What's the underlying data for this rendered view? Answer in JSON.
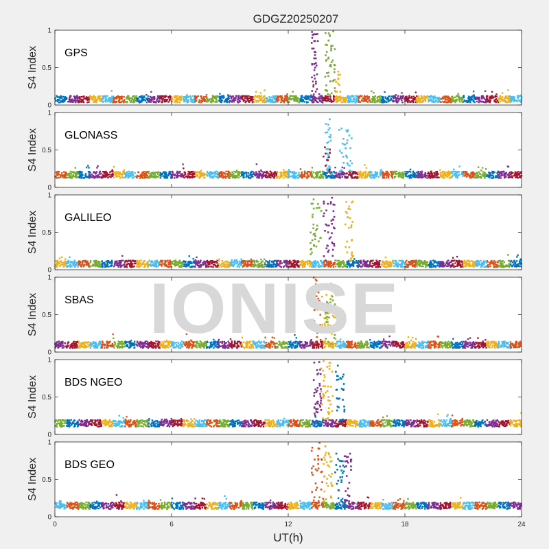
{
  "figure": {
    "title": "GDGZ20250207",
    "xlabel": "UT(h)",
    "watermark": "IONISE"
  },
  "colors": {
    "background": "#f0f0f0",
    "axes_background": "#ffffff",
    "palette": [
      "#0072BD",
      "#D95319",
      "#EDB120",
      "#7E2F8E",
      "#77AC30",
      "#4DBEEE",
      "#A2142F"
    ]
  },
  "chart_data": [
    {
      "type": "scatter",
      "panel_label": "GPS",
      "ylabel": "S4 Index",
      "xlim": [
        0,
        24
      ],
      "ylim": [
        0,
        1
      ],
      "yticks": [
        0,
        0.5,
        1
      ],
      "xticks": [
        0,
        6,
        12,
        18,
        24
      ],
      "baseline": 0.08,
      "series": [
        {
          "color": "#7E2F8E",
          "x_range": [
            13.2,
            13.6
          ],
          "y_range": [
            0.1,
            0.98
          ],
          "points": 40
        },
        {
          "color": "#77AC30",
          "x_range": [
            13.9,
            14.4
          ],
          "y_range": [
            0.1,
            1.0
          ],
          "points": 45
        },
        {
          "color": "#EDB120",
          "x_range": [
            14.4,
            14.7
          ],
          "y_range": [
            0.1,
            0.45
          ],
          "points": 15
        }
      ]
    },
    {
      "type": "scatter",
      "panel_label": "GLONASS",
      "ylabel": "S4 Index",
      "xlim": [
        0,
        24
      ],
      "ylim": [
        0,
        1
      ],
      "yticks": [
        0,
        0.5,
        1
      ],
      "xticks": [
        0,
        6,
        12,
        18,
        24
      ],
      "baseline": 0.17,
      "series": [
        {
          "color": "#4DBEEE",
          "x_range": [
            13.9,
            14.2
          ],
          "y_range": [
            0.2,
            0.95
          ],
          "points": 30
        },
        {
          "color": "#4DBEEE",
          "x_range": [
            14.6,
            15.3
          ],
          "y_range": [
            0.2,
            0.82
          ],
          "points": 35
        },
        {
          "color": "#A2142F",
          "x_range": [
            13.8,
            14.2
          ],
          "y_range": [
            0.2,
            0.55
          ],
          "points": 12
        }
      ]
    },
    {
      "type": "scatter",
      "panel_label": "GALILEO",
      "ylabel": "S4 Index",
      "xlim": [
        0,
        24
      ],
      "ylim": [
        0,
        1
      ],
      "yticks": [
        0,
        0.5,
        1
      ],
      "xticks": [
        0,
        6,
        12,
        18,
        24
      ],
      "baseline": 0.08,
      "series": [
        {
          "color": "#77AC30",
          "x_range": [
            13.1,
            13.7
          ],
          "y_range": [
            0.1,
            0.98
          ],
          "points": 35
        },
        {
          "color": "#7E2F8E",
          "x_range": [
            13.8,
            14.4
          ],
          "y_range": [
            0.1,
            0.98
          ],
          "points": 40
        },
        {
          "color": "#EDB120",
          "x_range": [
            14.9,
            15.4
          ],
          "y_range": [
            0.1,
            0.92
          ],
          "points": 30
        }
      ]
    },
    {
      "type": "scatter",
      "panel_label": "SBAS",
      "ylabel": "S4 Index",
      "xlim": [
        0,
        24
      ],
      "ylim": [
        0,
        1
      ],
      "yticks": [
        0,
        0.5,
        1
      ],
      "xticks": [
        0,
        6,
        12,
        18,
        24
      ],
      "baseline": 0.1,
      "series": [
        {
          "color": "#D95319",
          "x_range": [
            13.3,
            13.7
          ],
          "y_range": [
            0.1,
            1.0
          ],
          "points": 25
        },
        {
          "color": "#EDB120",
          "x_range": [
            13.6,
            14.5
          ],
          "y_range": [
            0.1,
            0.95
          ],
          "points": 35
        },
        {
          "color": "#77AC30",
          "x_range": [
            13.9,
            14.4
          ],
          "y_range": [
            0.1,
            0.75
          ],
          "points": 20
        }
      ]
    },
    {
      "type": "scatter",
      "panel_label": "BDS NGEO",
      "ylabel": "S4 Index",
      "xlim": [
        0,
        24
      ],
      "ylim": [
        0,
        1
      ],
      "yticks": [
        0,
        0.5,
        1
      ],
      "xticks": [
        0,
        6,
        12,
        18,
        24
      ],
      "baseline": 0.15,
      "series": [
        {
          "color": "#7E2F8E",
          "x_range": [
            13.3,
            13.7
          ],
          "y_range": [
            0.15,
            1.0
          ],
          "points": 40
        },
        {
          "color": "#EDB120",
          "x_range": [
            13.7,
            14.3
          ],
          "y_range": [
            0.15,
            1.0
          ],
          "points": 40
        },
        {
          "color": "#0072BD",
          "x_range": [
            14.4,
            14.9
          ],
          "y_range": [
            0.15,
            0.92
          ],
          "points": 30
        }
      ]
    },
    {
      "type": "scatter",
      "panel_label": "BDS GEO",
      "ylabel": "S4 Index",
      "xlim": [
        0,
        24
      ],
      "ylim": [
        0,
        1
      ],
      "yticks": [
        0,
        0.5,
        1
      ],
      "xticks": [
        0,
        6,
        12,
        18,
        24
      ],
      "baseline": 0.15,
      "series": [
        {
          "color": "#D95319",
          "x_range": [
            13.2,
            13.8
          ],
          "y_range": [
            0.2,
            1.0
          ],
          "points": 30
        },
        {
          "color": "#EDB120",
          "x_range": [
            13.8,
            14.3
          ],
          "y_range": [
            0.2,
            0.95
          ],
          "points": 35
        },
        {
          "color": "#0072BD",
          "x_range": [
            14.4,
            14.9
          ],
          "y_range": [
            0.2,
            0.85
          ],
          "points": 25
        },
        {
          "color": "#7E2F8E",
          "x_range": [
            14.9,
            15.3
          ],
          "y_range": [
            0.2,
            0.85
          ],
          "points": 25
        }
      ]
    }
  ]
}
